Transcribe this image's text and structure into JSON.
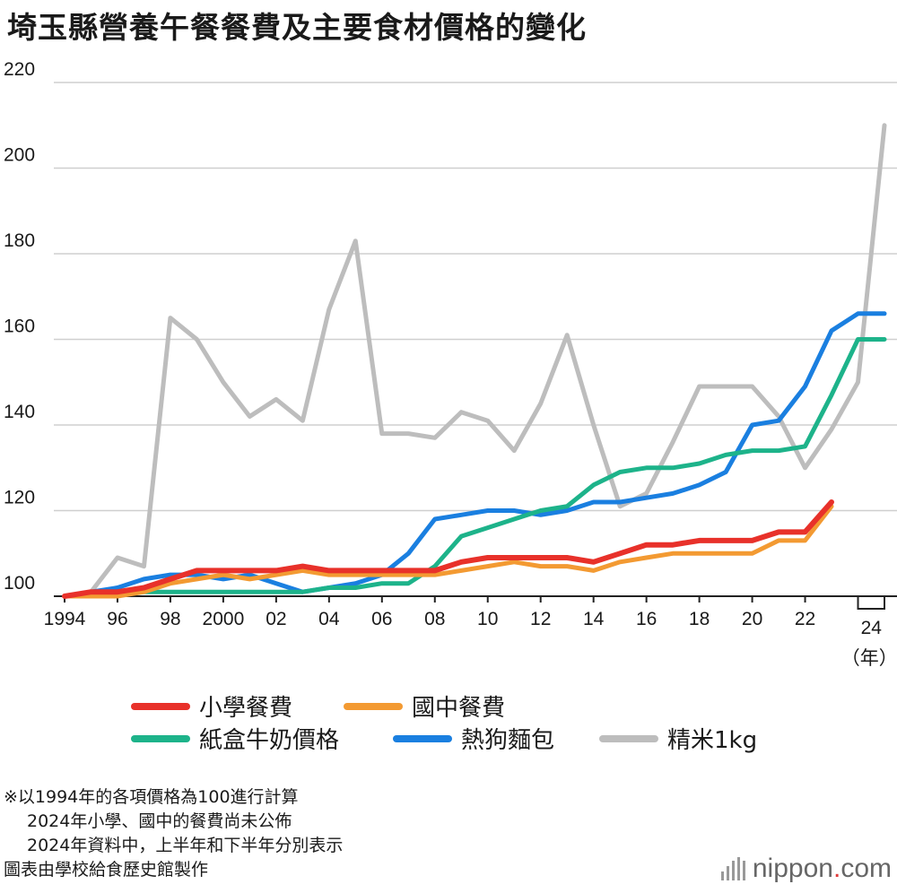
{
  "title": "埼玉縣營養午餐餐費及主要食材價格的變化",
  "chart_data": {
    "type": "line",
    "title": "埼玉縣營養午餐餐費及主要食材價格的變化",
    "x": [
      1994,
      1995,
      1996,
      1997,
      1998,
      1999,
      2000,
      2001,
      2002,
      2003,
      2004,
      2005,
      2006,
      2007,
      2008,
      2009,
      2010,
      2011,
      2012,
      2013,
      2014,
      2015,
      2016,
      2017,
      2018,
      2019,
      2020,
      2021,
      2022,
      2023,
      2024,
      2025
    ],
    "x_tick_labels": [
      {
        "x": 1994,
        "label": "1994"
      },
      {
        "x": 1996,
        "label": "96"
      },
      {
        "x": 1998,
        "label": "98"
      },
      {
        "x": 2000,
        "label": "2000"
      },
      {
        "x": 2002,
        "label": "02"
      },
      {
        "x": 2004,
        "label": "04"
      },
      {
        "x": 2006,
        "label": "06"
      },
      {
        "x": 2008,
        "label": "08"
      },
      {
        "x": 2010,
        "label": "10"
      },
      {
        "x": 2012,
        "label": "12"
      },
      {
        "x": 2014,
        "label": "14"
      },
      {
        "x": 2016,
        "label": "16"
      },
      {
        "x": 2018,
        "label": "18"
      },
      {
        "x": 2020,
        "label": "20"
      },
      {
        "x": 2022,
        "label": "22"
      }
    ],
    "x_bracket_label": "24",
    "x_unit": "（年）",
    "ylim": [
      100,
      220
    ],
    "yticks": [
      100,
      120,
      140,
      160,
      180,
      200,
      220
    ],
    "grid": true,
    "legend_position": "bottom",
    "series": [
      {
        "name": "小學餐費",
        "color": "#e8312a",
        "values": [
          100,
          101,
          101,
          102,
          104,
          106,
          106,
          106,
          106,
          107,
          106,
          106,
          106,
          106,
          106,
          108,
          109,
          109,
          109,
          109,
          108,
          110,
          112,
          112,
          113,
          113,
          113,
          115,
          115,
          122,
          null,
          null
        ]
      },
      {
        "name": "國中餐費",
        "color": "#f39a32",
        "values": [
          100,
          100,
          100,
          101,
          103,
          104,
          105,
          104,
          105,
          106,
          105,
          105,
          105,
          105,
          105,
          106,
          107,
          108,
          107,
          107,
          106,
          108,
          109,
          110,
          110,
          110,
          110,
          113,
          113,
          121,
          null,
          null
        ]
      },
      {
        "name": "紙盒牛奶價格",
        "color": "#1db38a",
        "values": [
          100,
          101,
          101,
          101,
          101,
          101,
          101,
          101,
          101,
          101,
          102,
          102,
          103,
          103,
          107,
          114,
          116,
          118,
          120,
          121,
          126,
          129,
          130,
          130,
          131,
          133,
          134,
          134,
          135,
          147,
          160,
          160
        ]
      },
      {
        "name": "熱狗麵包",
        "color": "#1a7fe0",
        "values": [
          100,
          101,
          102,
          104,
          105,
          105,
          104,
          105,
          103,
          101,
          102,
          103,
          105,
          110,
          118,
          119,
          120,
          120,
          119,
          120,
          122,
          122,
          123,
          124,
          126,
          129,
          140,
          141,
          149,
          162,
          166,
          166
        ]
      },
      {
        "name": "精米1kg",
        "color": "#bdbdbd",
        "values": [
          100,
          101,
          109,
          107,
          165,
          160,
          150,
          142,
          146,
          141,
          167,
          183,
          138,
          138,
          137,
          143,
          141,
          134,
          145,
          161,
          140,
          121,
          124,
          136,
          149,
          149,
          149,
          142,
          130,
          139,
          150,
          210
        ]
      }
    ]
  },
  "notes": [
    "※以1994年的各項價格為100進行計算",
    "2024年小學、國中的餐費尚未公佈",
    "2024年資料中，上半年和下半年分別表示"
  ],
  "source": "圖表由學校給食歷史館製作",
  "brand": {
    "name": "nippon",
    "dot": ".",
    "tld": "com"
  }
}
